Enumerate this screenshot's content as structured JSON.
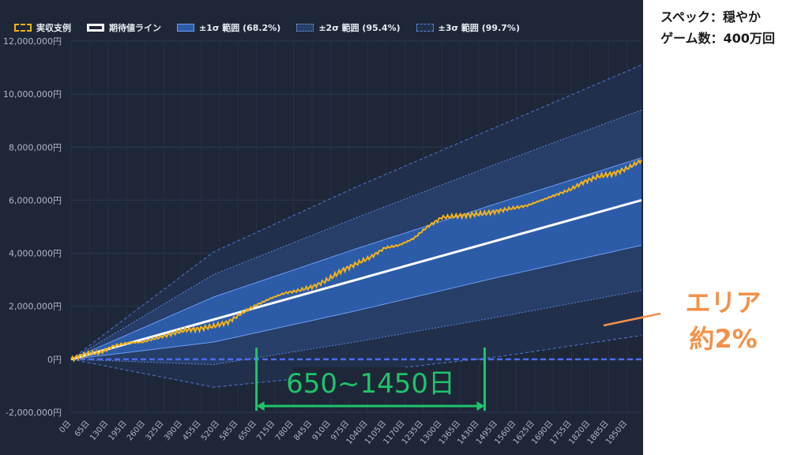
{
  "spec": {
    "line1": "スペック：穏やか",
    "line2": "ゲーム数：400万回"
  },
  "legend": [
    {
      "key": "actual",
      "label": "実収支例"
    },
    {
      "key": "expected",
      "label": "期待値ライン"
    },
    {
      "key": "sigma1",
      "label": "±1σ 範囲 (68.2%)"
    },
    {
      "key": "sigma2",
      "label": "±2σ 範囲 (95.4%)"
    },
    {
      "key": "sigma3",
      "label": "±3σ 範囲 (99.7%)"
    }
  ],
  "annotation": {
    "range": "650~1450日",
    "area_line1": "エリア",
    "area_line2": "約2%"
  },
  "colors": {
    "panel": "#1e2738",
    "sigma1": "#2c5ca8",
    "sigma2": "#263e68",
    "sigma3": "#212f4a",
    "expected": "#ffffff",
    "actual": "#f2b31b",
    "zero_line": "#4d6cf0",
    "annotation_green": "#1ec46a",
    "annotation_orange": "#f39149"
  },
  "chart_data": {
    "type": "area",
    "x_ticks": [
      "0日",
      "65日",
      "130日",
      "195日",
      "260日",
      "325日",
      "390日",
      "455日",
      "520日",
      "585日",
      "650日",
      "715日",
      "780日",
      "845日",
      "910日",
      "975日",
      "1040日",
      "1105日",
      "1170日",
      "1235日",
      "1300日",
      "1365日",
      "1430日",
      "1495日",
      "1560日",
      "1625日",
      "1690日",
      "1755日",
      "1820日",
      "1885日",
      "1950日"
    ],
    "y_ticks": [
      "12,000,000円",
      "10,000,000円",
      "8,000,000円",
      "6,000,000円",
      "4,000,000円",
      "2,000,000円",
      "0円",
      "-2,000,000円"
    ],
    "ylim": [
      -2000000,
      12000000
    ],
    "xlim": [
      0,
      2000
    ],
    "expected": {
      "x": [
        0,
        2000
      ],
      "y": [
        0,
        6000000
      ]
    },
    "sigma1": {
      "x": [
        0,
        500,
        1000,
        1500,
        2000
      ],
      "y_upper": [
        0,
        2350000,
        4170000,
        5900000,
        7600000
      ],
      "y_lower": [
        0,
        650000,
        1830000,
        3100000,
        4300000
      ]
    },
    "sigma2": {
      "x": [
        0,
        500,
        1000,
        1500,
        2000
      ],
      "y_upper": [
        0,
        3200000,
        5340000,
        7400000,
        9400000
      ],
      "y_lower": [
        0,
        -200000,
        660000,
        1600000,
        2600000
      ]
    },
    "sigma3": {
      "x": [
        0,
        500,
        1000,
        1500,
        2000
      ],
      "y_upper": [
        0,
        4050000,
        6500000,
        8800000,
        11100000
      ],
      "y_lower": [
        0,
        -1050000,
        -510000,
        100000,
        900000
      ]
    },
    "actual": {
      "x": [
        0,
        50,
        100,
        150,
        200,
        250,
        300,
        350,
        400,
        450,
        500,
        550,
        600,
        650,
        700,
        750,
        800,
        850,
        900,
        950,
        1000,
        1050,
        1100,
        1150,
        1200,
        1250,
        1300,
        1350,
        1400,
        1450,
        1500,
        1550,
        1600,
        1650,
        1700,
        1750,
        1800,
        1850,
        1900,
        1950,
        2000
      ],
      "y": [
        0,
        200000,
        250000,
        500000,
        620000,
        650000,
        800000,
        950000,
        1100000,
        1150000,
        1250000,
        1400000,
        1750000,
        2050000,
        2300000,
        2500000,
        2600000,
        2750000,
        3000000,
        3350000,
        3600000,
        3850000,
        4200000,
        4300000,
        4550000,
        5000000,
        5350000,
        5400000,
        5450000,
        5500000,
        5600000,
        5700000,
        5800000,
        6000000,
        6200000,
        6400000,
        6700000,
        6900000,
        7000000,
        7200000,
        7500000
      ]
    },
    "annotation_range": {
      "x": [
        650,
        1450
      ]
    }
  }
}
